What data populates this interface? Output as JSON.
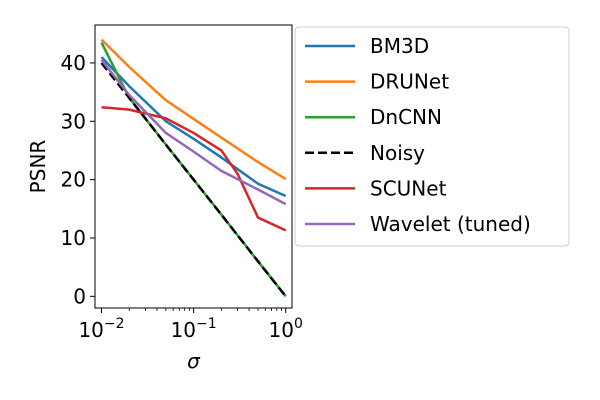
{
  "chart_data": {
    "type": "line",
    "title": "",
    "xlabel": "σ",
    "ylabel": "PSNR",
    "xscale": "log",
    "xlim": [
      0.0085,
      1.17
    ],
    "ylim": [
      -2,
      46.5
    ],
    "grid": false,
    "legend_position": "outside-right",
    "x_ticks": [
      {
        "value": 0.01,
        "base": "10",
        "exp": "−2"
      },
      {
        "value": 0.1,
        "base": "10",
        "exp": "−1"
      },
      {
        "value": 1,
        "base": "10",
        "exp": "0"
      }
    ],
    "y_ticks": [
      0,
      10,
      20,
      30,
      40
    ],
    "series": [
      {
        "name": "BM3D",
        "color": "#1f77b4",
        "dash": "solid",
        "x": [
          0.01,
          0.02,
          0.05,
          0.1,
          0.2,
          0.5,
          1.0
        ],
        "y": [
          41.0,
          36.0,
          30.0,
          27.0,
          23.8,
          19.3,
          17.2
        ]
      },
      {
        "name": "DRUNet",
        "color": "#ff7f0e",
        "dash": "solid",
        "x": [
          0.01,
          0.02,
          0.05,
          0.1,
          0.2,
          0.5,
          1.0
        ],
        "y": [
          44.0,
          39.3,
          33.6,
          30.4,
          27.2,
          23.0,
          20.1
        ]
      },
      {
        "name": "DnCNN",
        "color": "#2ca02c",
        "dash": "solid",
        "x": [
          0.01,
          0.02,
          0.05,
          0.1,
          0.2,
          0.5,
          1.0
        ],
        "y": [
          43.5,
          34.0,
          26.0,
          20.0,
          14.0,
          6.0,
          0.0
        ]
      },
      {
        "name": "Noisy",
        "color": "#000000",
        "dash": "dashed",
        "x": [
          0.01,
          0.02,
          0.05,
          0.1,
          0.2,
          0.5,
          1.0
        ],
        "y": [
          40.0,
          34.0,
          26.0,
          20.0,
          14.0,
          6.0,
          0.0
        ]
      },
      {
        "name": "SCUNet",
        "color": "#d62728",
        "dash": "solid",
        "x": [
          0.01,
          0.02,
          0.05,
          0.1,
          0.2,
          0.3,
          0.5,
          1.0
        ],
        "y": [
          32.4,
          32.0,
          30.5,
          28.0,
          25.0,
          21.0,
          13.5,
          11.3
        ]
      },
      {
        "name": "Wavelet (tuned)",
        "color": "#9467bd",
        "dash": "solid",
        "x": [
          0.01,
          0.02,
          0.05,
          0.1,
          0.2,
          0.5,
          1.0
        ],
        "y": [
          40.5,
          34.5,
          28.0,
          24.8,
          21.5,
          18.3,
          15.8
        ]
      }
    ]
  }
}
